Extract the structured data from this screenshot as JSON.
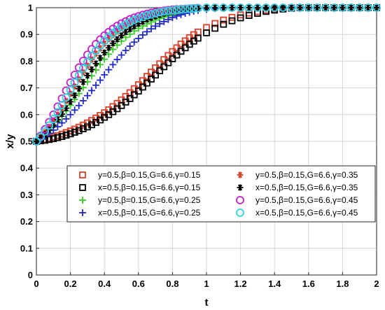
{
  "chart_data": {
    "type": "scatter",
    "xlabel": "t",
    "ylabel": "x/y",
    "xlim": [
      0,
      2
    ],
    "ylim": [
      0,
      1
    ],
    "xticks": [
      "0",
      "0.2",
      "0.4",
      "0.6",
      "0.8",
      "1",
      "1.2",
      "1.4",
      "1.6",
      "1.8",
      "2"
    ],
    "yticks": [
      "0",
      "0.1",
      "0.2",
      "0.3",
      "0.4",
      "0.5",
      "0.6",
      "0.7",
      "0.8",
      "0.9",
      "1"
    ],
    "grid": true,
    "legend_position": "lower-right",
    "series": [
      {
        "name": "y=0.5,β=0.15,G=6.6,γ=0.15",
        "marker": "square",
        "color": "#d9412b",
        "x": [
          0,
          0.025,
          0.05,
          0.075,
          0.1,
          0.125,
          0.15,
          0.175,
          0.2,
          0.225,
          0.25,
          0.275,
          0.3,
          0.325,
          0.35,
          0.375,
          0.4,
          0.425,
          0.45,
          0.475,
          0.5,
          0.525,
          0.55,
          0.575,
          0.6,
          0.625,
          0.65,
          0.675,
          0.7,
          0.725,
          0.75,
          0.775,
          0.8,
          0.825,
          0.85,
          0.875,
          0.9,
          0.925,
          0.95,
          1.0,
          1.05,
          1.1,
          1.15,
          1.2,
          1.25,
          1.3,
          1.35,
          1.4,
          1.45,
          1.5,
          1.55,
          1.6,
          1.65,
          1.7,
          1.75,
          1.8,
          1.85,
          1.9,
          1.95,
          2.0
        ],
        "y": [
          0.5,
          0.503,
          0.507,
          0.511,
          0.516,
          0.521,
          0.527,
          0.533,
          0.539,
          0.546,
          0.553,
          0.561,
          0.569,
          0.578,
          0.587,
          0.597,
          0.607,
          0.618,
          0.63,
          0.642,
          0.655,
          0.668,
          0.682,
          0.697,
          0.712,
          0.727,
          0.743,
          0.759,
          0.775,
          0.79,
          0.806,
          0.821,
          0.836,
          0.85,
          0.864,
          0.876,
          0.888,
          0.899,
          0.909,
          0.926,
          0.941,
          0.954,
          0.964,
          0.973,
          0.98,
          0.986,
          0.991,
          0.995,
          0.998,
          1.0,
          1.0,
          1.0,
          1.0,
          1.0,
          1.0,
          1.0,
          1.0,
          1.0,
          1.0,
          1.0
        ]
      },
      {
        "name": "x=0.5,β=0.15,G=6.6,γ=0.15",
        "marker": "square",
        "color": "#000000",
        "x": [
          0,
          0.025,
          0.05,
          0.075,
          0.1,
          0.125,
          0.15,
          0.175,
          0.2,
          0.225,
          0.25,
          0.275,
          0.3,
          0.325,
          0.35,
          0.375,
          0.4,
          0.425,
          0.45,
          0.475,
          0.5,
          0.525,
          0.55,
          0.575,
          0.6,
          0.625,
          0.65,
          0.675,
          0.7,
          0.725,
          0.75,
          0.775,
          0.8,
          0.825,
          0.85,
          0.875,
          0.9,
          0.925,
          0.95,
          1.0,
          1.05,
          1.1,
          1.15,
          1.2,
          1.25,
          1.3,
          1.35,
          1.4,
          1.45,
          1.5,
          1.55,
          1.6,
          1.65,
          1.7,
          1.75,
          1.8,
          1.85,
          1.9,
          1.95,
          2.0
        ],
        "y": [
          0.5,
          0.502,
          0.504,
          0.507,
          0.51,
          0.514,
          0.518,
          0.523,
          0.528,
          0.534,
          0.54,
          0.547,
          0.554,
          0.562,
          0.571,
          0.58,
          0.59,
          0.6,
          0.611,
          0.622,
          0.634,
          0.647,
          0.66,
          0.674,
          0.688,
          0.703,
          0.718,
          0.733,
          0.748,
          0.764,
          0.779,
          0.794,
          0.809,
          0.823,
          0.837,
          0.85,
          0.863,
          0.875,
          0.886,
          0.906,
          0.923,
          0.938,
          0.951,
          0.962,
          0.971,
          0.979,
          0.986,
          0.991,
          0.995,
          0.998,
          1.0,
          1.0,
          1.0,
          1.0,
          1.0,
          1.0,
          1.0,
          1.0,
          1.0,
          1.0
        ]
      },
      {
        "name": "y=0.5,β=0.15,G=6.6,γ=0.25",
        "marker": "plus",
        "color": "#33cc22",
        "x": [
          0,
          0.025,
          0.05,
          0.075,
          0.1,
          0.125,
          0.15,
          0.175,
          0.2,
          0.225,
          0.25,
          0.275,
          0.3,
          0.325,
          0.35,
          0.375,
          0.4,
          0.425,
          0.45,
          0.475,
          0.5,
          0.525,
          0.55,
          0.575,
          0.6,
          0.625,
          0.65,
          0.675,
          0.7,
          0.725,
          0.75,
          0.775,
          0.8,
          0.825,
          0.85,
          0.875,
          0.9,
          0.925,
          0.95,
          1.0,
          1.05,
          1.1,
          1.15,
          1.2,
          1.25,
          1.3,
          1.35,
          1.4,
          1.45,
          1.5,
          1.55,
          1.6,
          1.65,
          1.7,
          1.75,
          1.8,
          1.85,
          1.9,
          1.95,
          2.0
        ],
        "y": [
          0.5,
          0.512,
          0.526,
          0.541,
          0.557,
          0.575,
          0.594,
          0.614,
          0.635,
          0.657,
          0.679,
          0.701,
          0.723,
          0.745,
          0.767,
          0.787,
          0.807,
          0.826,
          0.844,
          0.86,
          0.875,
          0.889,
          0.901,
          0.913,
          0.923,
          0.932,
          0.94,
          0.947,
          0.954,
          0.96,
          0.965,
          0.97,
          0.974,
          0.978,
          0.982,
          0.985,
          0.988,
          0.991,
          0.993,
          0.996,
          0.998,
          0.999,
          1.0,
          1.0,
          1.0,
          1.0,
          1.0,
          1.0,
          1.0,
          1.0,
          1.0,
          1.0,
          1.0,
          1.0,
          1.0,
          1.0,
          1.0,
          1.0,
          1.0,
          1.0
        ]
      },
      {
        "name": "x=0.5,β=0.15,G=6.6,γ=0.25",
        "marker": "plus",
        "color": "#1f28c8",
        "x": [
          0,
          0.025,
          0.05,
          0.075,
          0.1,
          0.125,
          0.15,
          0.175,
          0.2,
          0.225,
          0.25,
          0.275,
          0.3,
          0.325,
          0.35,
          0.375,
          0.4,
          0.425,
          0.45,
          0.475,
          0.5,
          0.525,
          0.55,
          0.575,
          0.6,
          0.625,
          0.65,
          0.675,
          0.7,
          0.725,
          0.75,
          0.775,
          0.8,
          0.825,
          0.85,
          0.875,
          0.9,
          0.925,
          0.95,
          1.0,
          1.05,
          1.1,
          1.15,
          1.2,
          1.25,
          1.3,
          1.35,
          1.4,
          1.45,
          1.5,
          1.55,
          1.6,
          1.65,
          1.7,
          1.75,
          1.8,
          1.85,
          1.9,
          1.95,
          2.0
        ],
        "y": [
          0.5,
          0.509,
          0.519,
          0.53,
          0.542,
          0.555,
          0.569,
          0.584,
          0.6,
          0.617,
          0.634,
          0.652,
          0.671,
          0.69,
          0.71,
          0.729,
          0.749,
          0.768,
          0.787,
          0.806,
          0.823,
          0.84,
          0.856,
          0.871,
          0.885,
          0.898,
          0.91,
          0.921,
          0.931,
          0.94,
          0.948,
          0.956,
          0.963,
          0.969,
          0.974,
          0.979,
          0.983,
          0.987,
          0.99,
          0.994,
          0.997,
          0.999,
          1.0,
          1.0,
          1.0,
          1.0,
          1.0,
          1.0,
          1.0,
          1.0,
          1.0,
          1.0,
          1.0,
          1.0,
          1.0,
          1.0,
          1.0,
          1.0,
          1.0,
          1.0
        ]
      },
      {
        "name": "y=0.5,β=0.15,G=6.6,γ=0.35",
        "marker": "star",
        "color": "#d9412b",
        "x": [
          0,
          0.025,
          0.05,
          0.075,
          0.1,
          0.125,
          0.15,
          0.175,
          0.2,
          0.225,
          0.25,
          0.275,
          0.3,
          0.325,
          0.35,
          0.375,
          0.4,
          0.425,
          0.45,
          0.475,
          0.5,
          0.525,
          0.55,
          0.575,
          0.6,
          0.625,
          0.65,
          0.675,
          0.7,
          0.725,
          0.75,
          0.775,
          0.8,
          0.825,
          0.85,
          0.875,
          0.9,
          0.925,
          0.95,
          1.0,
          1.05,
          1.1,
          1.15,
          1.2,
          1.25,
          1.3,
          1.35,
          1.4,
          1.45,
          1.5,
          1.55,
          1.6,
          1.65,
          1.7,
          1.75,
          1.8,
          1.85,
          1.9,
          1.95,
          2.0
        ],
        "y": [
          0.5,
          0.516,
          0.534,
          0.554,
          0.576,
          0.6,
          0.625,
          0.651,
          0.678,
          0.705,
          0.732,
          0.758,
          0.783,
          0.806,
          0.828,
          0.848,
          0.866,
          0.883,
          0.898,
          0.911,
          0.923,
          0.934,
          0.943,
          0.951,
          0.958,
          0.964,
          0.97,
          0.975,
          0.979,
          0.983,
          0.986,
          0.989,
          0.991,
          0.993,
          0.995,
          0.996,
          0.997,
          0.998,
          0.999,
          1.0,
          1.0,
          1.0,
          1.0,
          1.0,
          1.0,
          1.0,
          1.0,
          1.0,
          1.0,
          1.0,
          1.0,
          1.0,
          1.0,
          1.0,
          1.0,
          1.0,
          1.0,
          1.0,
          1.0,
          1.0
        ]
      },
      {
        "name": "x=0.5,β=0.15,G=6.6,γ=0.35",
        "marker": "star",
        "color": "#000000",
        "x": [
          0,
          0.025,
          0.05,
          0.075,
          0.1,
          0.125,
          0.15,
          0.175,
          0.2,
          0.225,
          0.25,
          0.275,
          0.3,
          0.325,
          0.35,
          0.375,
          0.4,
          0.425,
          0.45,
          0.475,
          0.5,
          0.525,
          0.55,
          0.575,
          0.6,
          0.625,
          0.65,
          0.675,
          0.7,
          0.725,
          0.75,
          0.775,
          0.8,
          0.825,
          0.85,
          0.875,
          0.9,
          0.925,
          0.95,
          1.0,
          1.05,
          1.1,
          1.15,
          1.2,
          1.25,
          1.3,
          1.35,
          1.4,
          1.45,
          1.5,
          1.55,
          1.6,
          1.65,
          1.7,
          1.75,
          1.8,
          1.85,
          1.9,
          1.95,
          2.0
        ],
        "y": [
          0.5,
          0.513,
          0.527,
          0.543,
          0.561,
          0.581,
          0.602,
          0.624,
          0.648,
          0.672,
          0.697,
          0.722,
          0.746,
          0.769,
          0.791,
          0.812,
          0.832,
          0.85,
          0.867,
          0.882,
          0.896,
          0.909,
          0.92,
          0.931,
          0.94,
          0.948,
          0.956,
          0.962,
          0.968,
          0.973,
          0.978,
          0.982,
          0.985,
          0.988,
          0.991,
          0.993,
          0.995,
          0.996,
          0.997,
          0.999,
          1.0,
          1.0,
          1.0,
          1.0,
          1.0,
          1.0,
          1.0,
          1.0,
          1.0,
          1.0,
          1.0,
          1.0,
          1.0,
          1.0,
          1.0,
          1.0,
          1.0,
          1.0,
          1.0,
          1.0
        ]
      },
      {
        "name": "y=0.5,β=0.15,G=6.6,γ=0.45",
        "marker": "circle",
        "color": "#c81ec8",
        "x": [
          0,
          0.025,
          0.05,
          0.075,
          0.1,
          0.125,
          0.15,
          0.175,
          0.2,
          0.225,
          0.25,
          0.275,
          0.3,
          0.325,
          0.35,
          0.375,
          0.4,
          0.425,
          0.45,
          0.475,
          0.5,
          0.525,
          0.55,
          0.575,
          0.6,
          0.625,
          0.65,
          0.675,
          0.7,
          0.725,
          0.75,
          0.775,
          0.8,
          0.825,
          0.85,
          0.875,
          0.9,
          0.925,
          0.95,
          1.0,
          1.05,
          1.1,
          1.15,
          1.2,
          1.25,
          1.3,
          1.35,
          1.4,
          1.45,
          1.5,
          1.55,
          1.6,
          1.65,
          1.7,
          1.75,
          1.8,
          1.85,
          1.9,
          1.95,
          2.0
        ],
        "y": [
          0.5,
          0.521,
          0.545,
          0.572,
          0.6,
          0.63,
          0.66,
          0.69,
          0.72,
          0.749,
          0.776,
          0.801,
          0.824,
          0.845,
          0.864,
          0.881,
          0.896,
          0.909,
          0.921,
          0.932,
          0.941,
          0.949,
          0.957,
          0.963,
          0.968,
          0.973,
          0.977,
          0.981,
          0.984,
          0.987,
          0.989,
          0.991,
          0.993,
          0.994,
          0.995,
          0.996,
          0.997,
          0.998,
          0.999,
          1.0,
          1.0,
          1.0,
          1.0,
          1.0,
          1.0,
          1.0,
          1.0,
          1.0,
          1.0,
          1.0,
          1.0,
          1.0,
          1.0,
          1.0,
          1.0,
          1.0,
          1.0,
          1.0,
          1.0,
          1.0
        ]
      },
      {
        "name": "x=0.5,β=0.15,G=6.6,γ=0.45",
        "marker": "circle",
        "color": "#2ed3e0",
        "x": [
          0,
          0.025,
          0.05,
          0.075,
          0.1,
          0.125,
          0.15,
          0.175,
          0.2,
          0.225,
          0.25,
          0.275,
          0.3,
          0.325,
          0.35,
          0.375,
          0.4,
          0.425,
          0.45,
          0.475,
          0.5,
          0.525,
          0.55,
          0.575,
          0.6,
          0.625,
          0.65,
          0.675,
          0.7,
          0.725,
          0.75,
          0.775,
          0.8,
          0.825,
          0.85,
          0.875,
          0.9,
          0.925,
          0.95,
          1.0,
          1.05,
          1.1,
          1.15,
          1.2,
          1.25,
          1.3,
          1.35,
          1.4,
          1.45,
          1.5,
          1.55,
          1.6,
          1.65,
          1.7,
          1.75,
          1.8,
          1.85,
          1.9,
          1.95,
          2.0
        ],
        "y": [
          0.5,
          0.517,
          0.537,
          0.559,
          0.583,
          0.609,
          0.636,
          0.664,
          0.692,
          0.72,
          0.747,
          0.773,
          0.797,
          0.82,
          0.84,
          0.859,
          0.876,
          0.891,
          0.905,
          0.917,
          0.928,
          0.938,
          0.946,
          0.954,
          0.96,
          0.966,
          0.971,
          0.975,
          0.979,
          0.983,
          0.986,
          0.988,
          0.99,
          0.992,
          0.994,
          0.995,
          0.996,
          0.997,
          0.998,
          1.0,
          1.0,
          1.0,
          1.0,
          1.0,
          1.0,
          1.0,
          1.0,
          1.0,
          1.0,
          1.0,
          1.0,
          1.0,
          1.0,
          1.0,
          1.0,
          1.0,
          1.0,
          1.0,
          1.0,
          1.0
        ]
      }
    ]
  }
}
